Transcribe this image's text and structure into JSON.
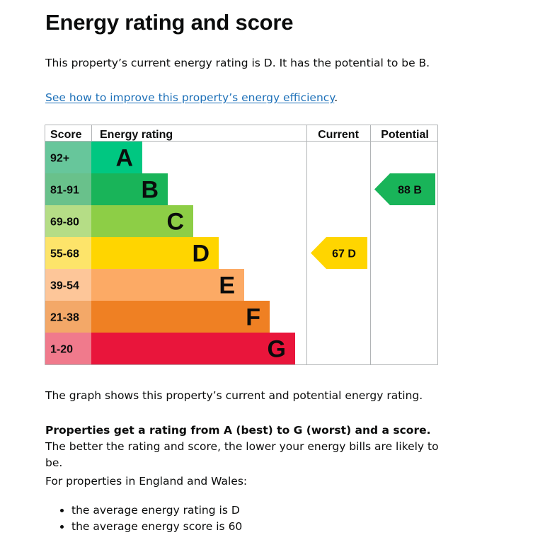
{
  "page": {
    "title": "Energy rating and score",
    "intro": "This property’s current energy rating is D. It has the potential to be B.",
    "improve_link": "See how to improve this property’s energy efficiency",
    "improve_link_suffix": ".",
    "graph_description": "The graph shows this property’s current and potential energy rating.",
    "ratings_bold": "Properties get a rating from A (best) to G (worst) and a score.",
    "ratings_rest": " The better the rating and score, the lower your energy bills are likely to be.",
    "england_wales": "For properties in England and Wales:",
    "bullets": [
      "the average energy rating is D",
      "the average energy score is 60"
    ]
  },
  "chart_data": {
    "type": "table",
    "headers": {
      "score": "Score",
      "rating": "Energy rating",
      "current": "Current",
      "potential": "Potential"
    },
    "bands": [
      {
        "range": "92+",
        "letter": "A",
        "color": "#00c781",
        "score_bg": "#67c69b",
        "order": 1
      },
      {
        "range": "81-91",
        "letter": "B",
        "color": "#19b459",
        "score_bg": "#69c18b",
        "order": 2
      },
      {
        "range": "69-80",
        "letter": "C",
        "color": "#8dce46",
        "score_bg": "#b5dd86",
        "order": 3
      },
      {
        "range": "55-68",
        "letter": "D",
        "color": "#ffd500",
        "score_bg": "#fde46a",
        "order": 4
      },
      {
        "range": "39-54",
        "letter": "E",
        "color": "#fcaa65",
        "score_bg": "#fdc699",
        "order": 5
      },
      {
        "range": "21-38",
        "letter": "F",
        "color": "#ef8023",
        "score_bg": "#f3a868",
        "order": 6
      },
      {
        "range": "1-20",
        "letter": "G",
        "color": "#e9153b",
        "score_bg": "#f07a8c",
        "order": 7
      }
    ],
    "current": {
      "score": 67,
      "rating": "D",
      "label": "67  D",
      "color": "#ffd500"
    },
    "potential": {
      "score": 88,
      "rating": "B",
      "label": "88  B",
      "color": "#19b459"
    }
  }
}
